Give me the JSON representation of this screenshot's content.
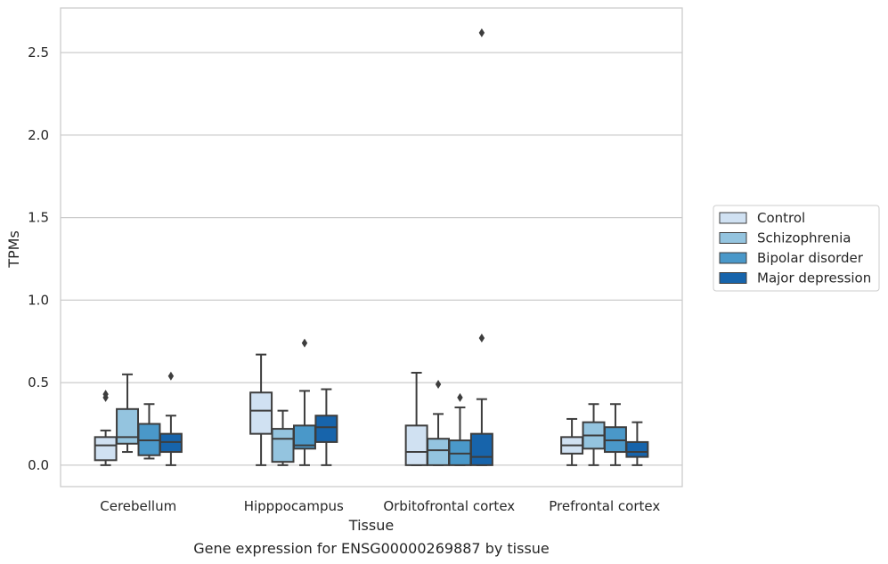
{
  "chart_data": {
    "type": "boxplot",
    "xlabel": "Tissue",
    "ylabel": "TPMs",
    "caption": "Gene expression for ENSG00000269887 by tissue",
    "ylim": [
      -0.13,
      2.77
    ],
    "yticks": [
      "0.0",
      "0.5",
      "1.0",
      "1.5",
      "2.0",
      "2.5"
    ],
    "grid": "horizontal",
    "legend_position": "right",
    "categories": [
      "Cerebellum",
      "Hipppocampus",
      "Orbitofrontal cortex",
      "Prefrontal cortex"
    ],
    "series": [
      {
        "name": "Control",
        "color": "#d0e1f2",
        "boxes": [
          {
            "whislo": 0.0,
            "q1": 0.03,
            "med": 0.12,
            "q3": 0.17,
            "whishi": 0.21,
            "fliers": [
              0.41,
              0.43
            ]
          },
          {
            "whislo": 0.0,
            "q1": 0.19,
            "med": 0.33,
            "q3": 0.44,
            "whishi": 0.67,
            "fliers": []
          },
          {
            "whislo": 0.0,
            "q1": 0.0,
            "med": 0.08,
            "q3": 0.24,
            "whishi": 0.56,
            "fliers": []
          },
          {
            "whislo": 0.0,
            "q1": 0.07,
            "med": 0.12,
            "q3": 0.17,
            "whishi": 0.28,
            "fliers": []
          }
        ]
      },
      {
        "name": "Schizophrenia",
        "color": "#94c4df",
        "boxes": [
          {
            "whislo": 0.08,
            "q1": 0.13,
            "med": 0.17,
            "q3": 0.34,
            "whishi": 0.55,
            "fliers": []
          },
          {
            "whislo": 0.0,
            "q1": 0.02,
            "med": 0.16,
            "q3": 0.22,
            "whishi": 0.33,
            "fliers": []
          },
          {
            "whislo": 0.0,
            "q1": 0.0,
            "med": 0.09,
            "q3": 0.16,
            "whishi": 0.31,
            "fliers": [
              0.49
            ]
          },
          {
            "whislo": 0.0,
            "q1": 0.1,
            "med": 0.18,
            "q3": 0.26,
            "whishi": 0.37,
            "fliers": []
          }
        ]
      },
      {
        "name": "Bipolar disorder",
        "color": "#4a98c9",
        "boxes": [
          {
            "whislo": 0.04,
            "q1": 0.06,
            "med": 0.15,
            "q3": 0.25,
            "whishi": 0.37,
            "fliers": []
          },
          {
            "whislo": 0.0,
            "q1": 0.1,
            "med": 0.12,
            "q3": 0.24,
            "whishi": 0.45,
            "fliers": [
              0.74
            ]
          },
          {
            "whislo": 0.0,
            "q1": 0.0,
            "med": 0.07,
            "q3": 0.15,
            "whishi": 0.35,
            "fliers": [
              0.41
            ]
          },
          {
            "whislo": 0.0,
            "q1": 0.08,
            "med": 0.15,
            "q3": 0.23,
            "whishi": 0.37,
            "fliers": []
          }
        ]
      },
      {
        "name": "Major depression",
        "color": "#1764ab",
        "boxes": [
          {
            "whislo": 0.0,
            "q1": 0.08,
            "med": 0.14,
            "q3": 0.19,
            "whishi": 0.3,
            "fliers": [
              0.54
            ]
          },
          {
            "whislo": 0.0,
            "q1": 0.14,
            "med": 0.23,
            "q3": 0.3,
            "whishi": 0.46,
            "fliers": []
          },
          {
            "whislo": 0.0,
            "q1": 0.0,
            "med": 0.05,
            "q3": 0.19,
            "whishi": 0.4,
            "fliers": [
              0.77,
              2.62
            ]
          },
          {
            "whislo": 0.0,
            "q1": 0.05,
            "med": 0.08,
            "q3": 0.14,
            "whishi": 0.26,
            "fliers": []
          }
        ]
      }
    ]
  }
}
